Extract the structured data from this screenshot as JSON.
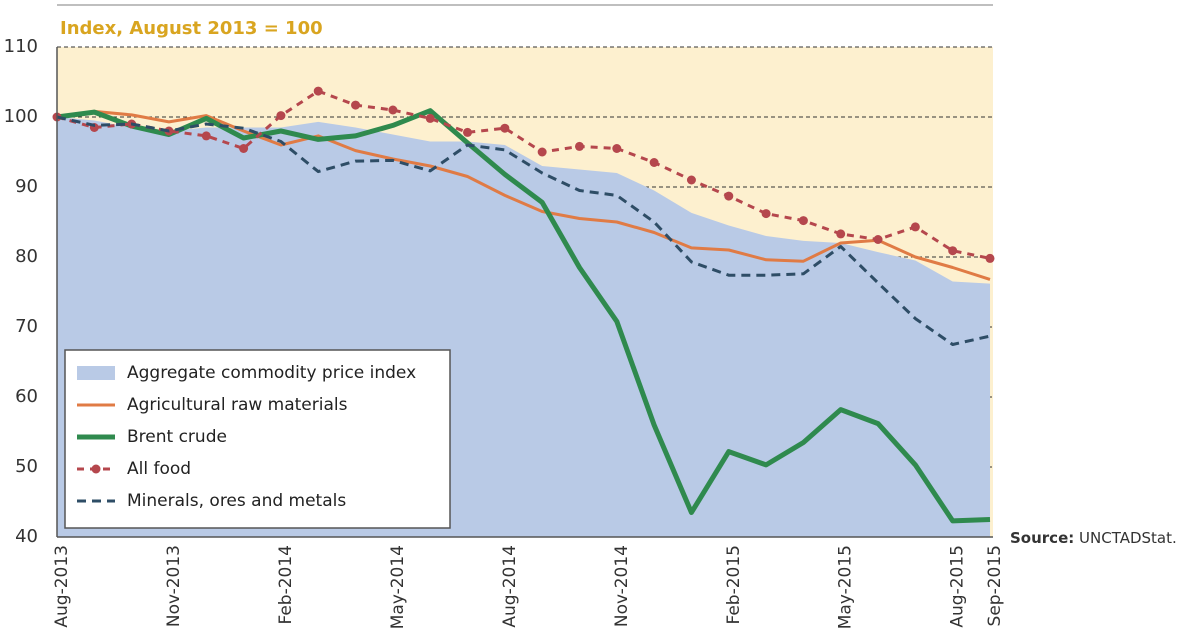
{
  "chart_data": {
    "type": "line",
    "title": "Index, August 2013 = 100",
    "source_label": "Source:",
    "source": "UNCTADStat.",
    "categories": [
      "Aug-2013",
      null,
      null,
      "Nov-2013",
      null,
      null,
      "Feb-2014",
      null,
      null,
      "May-2014",
      null,
      null,
      "Aug-2014",
      null,
      null,
      "Nov-2014",
      null,
      null,
      "Feb-2015",
      null,
      null,
      "May-2015",
      null,
      null,
      "Aug-2015",
      "Sep-2015"
    ],
    "ylim": [
      40,
      110
    ],
    "yticks": [
      40,
      50,
      60,
      70,
      80,
      90,
      100,
      110
    ],
    "grid": true,
    "legend": "lower left",
    "series": [
      {
        "name": "Aggregate commodity price index",
        "style": "area",
        "color": "#b9cae6",
        "values": [
          100,
          99.5,
          98.5,
          98,
          98.5,
          98.5,
          98.5,
          99.3,
          98.5,
          97.5,
          96.5,
          96.5,
          96,
          93,
          92.5,
          92,
          89.5,
          86.3,
          84.5,
          83,
          82.3,
          82,
          80.7,
          79.5,
          76.5,
          76.2
        ]
      },
      {
        "name": "Agricultural raw materials",
        "style": "solid",
        "color": "#e07b45",
        "values": [
          100,
          100.8,
          100.3,
          99.3,
          100.2,
          98,
          96,
          97.3,
          95.2,
          94,
          93,
          91.5,
          88.8,
          86.5,
          85.5,
          85,
          83.5,
          81.3,
          81,
          79.6,
          79.4,
          82,
          82.4,
          80,
          78.5,
          76.8
        ]
      },
      {
        "name": "Brent crude",
        "style": "thick",
        "color": "#2f8a4e",
        "values": [
          100,
          100.7,
          98.7,
          97.5,
          99.8,
          97,
          98,
          96.8,
          97.3,
          98.8,
          100.9,
          96.3,
          91.8,
          87.8,
          78.5,
          70.8,
          56,
          43.5,
          52.2,
          50.3,
          53.5,
          58.2,
          56.2,
          50.3,
          42.3,
          42.5
        ]
      },
      {
        "name": "All food",
        "style": "dotted",
        "color": "#b5474d",
        "values": [
          100,
          98.5,
          99,
          98,
          97.3,
          95.5,
          100.2,
          103.7,
          101.7,
          101,
          99.8,
          97.8,
          98.4,
          95,
          95.8,
          95.5,
          93.5,
          91,
          88.7,
          86.2,
          85.2,
          83.3,
          82.5,
          84.3,
          80.9,
          79.8
        ]
      },
      {
        "name": "Minerals, ores and metals",
        "style": "dashed",
        "color": "#2e4d66",
        "values": [
          100,
          98.8,
          99,
          98,
          99,
          98.4,
          96.5,
          92.2,
          93.7,
          93.8,
          92.3,
          96,
          95.3,
          92,
          89.5,
          88.8,
          85,
          79.3,
          77.4,
          77.4,
          77.6,
          81.5,
          76.3,
          71.2,
          67.5,
          68.7
        ]
      }
    ]
  }
}
